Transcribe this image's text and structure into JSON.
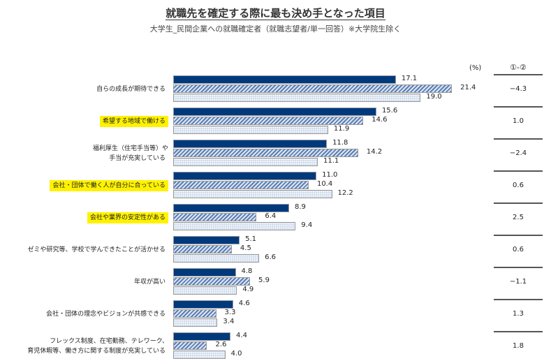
{
  "title": "就職先を確定する際に最も決め手となった項目",
  "subtitle": "大学生_民間企業への就職確定者（就職志望者/単一回答）※大学院生除く",
  "unit": "(%)",
  "diff_header": "①-②",
  "colors": {
    "series1": "#003a7d",
    "series2": "hatched-blue",
    "series3": "dotted-light-blue",
    "highlight": "#fff200"
  },
  "chart_data": {
    "type": "bar",
    "orientation": "horizontal",
    "categories": [
      "自らの成長が期待できる",
      "希望する地域で働ける",
      "福利厚生（住宅手当等）や\n手当が充実している",
      "会社・団体で働く人が自分に合っている",
      "会社や業界の安定性がある",
      "ゼミや研究等、学校で学んできたことが活かせる",
      "年収が高い",
      "会社・団体の理念やビジョンが共感できる",
      "フレックス制度、在宅勤務、テレワーク、\n育児休暇等、働き方に関する制度が充実している"
    ],
    "highlighted": [
      false,
      true,
      false,
      true,
      true,
      false,
      false,
      false,
      false
    ],
    "series": [
      {
        "values": [
          17.1,
          15.6,
          11.8,
          11.0,
          8.9,
          5.1,
          4.8,
          4.6,
          4.4
        ]
      },
      {
        "values": [
          21.4,
          14.6,
          14.2,
          10.4,
          6.4,
          4.5,
          5.9,
          3.3,
          2.6
        ]
      },
      {
        "values": [
          19.0,
          11.9,
          11.1,
          12.2,
          9.4,
          6.6,
          4.9,
          3.4,
          4.0
        ]
      }
    ],
    "diff": [
      "-4.3",
      "1.0",
      "-2.4",
      "0.6",
      "2.5",
      "0.6",
      "-1.1",
      "1.3",
      "1.8"
    ],
    "xlim": [
      0,
      25
    ]
  }
}
